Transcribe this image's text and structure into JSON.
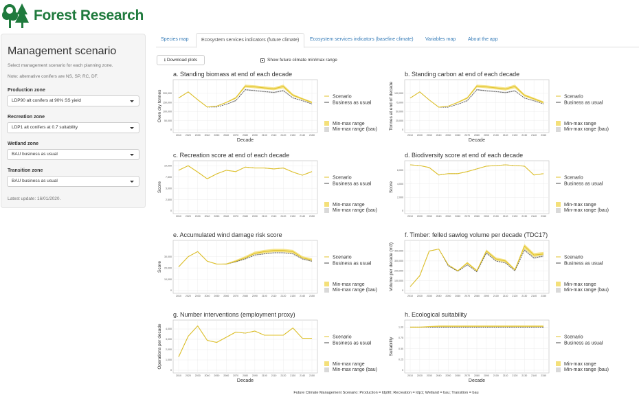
{
  "app": {
    "logo_text": "Forest Research",
    "logo_color": "#1f7a3d"
  },
  "sidebar": {
    "title": "Management scenario",
    "help": "Select management scenario for each planning zone.",
    "note": "Note: alternative conifers are NS, SP, RC, DF.",
    "zones": [
      {
        "label": "Production zone",
        "value": "LDP90 alt conifers at 90% SS yield"
      },
      {
        "label": "Recreation zone",
        "value": "LDP1 alt conifers at 0.7 suitability"
      },
      {
        "label": "Wetland zone",
        "value": "BAU business as usual"
      },
      {
        "label": "Transition zone",
        "value": "BAU business as usual"
      }
    ],
    "update": "Latest update: 16/01/2020."
  },
  "tabs": [
    {
      "label": "Species map",
      "active": false
    },
    {
      "label": "Ecosystem services indicators (future climate)",
      "active": true
    },
    {
      "label": "Ecosystem services indicators (baseline climate)",
      "active": false
    },
    {
      "label": "Variables map",
      "active": false
    },
    {
      "label": "About the app",
      "active": false
    }
  ],
  "toolbar": {
    "download_label": "Download plots",
    "checkbox_label": "Show future climate min/max range",
    "checkbox_checked": true
  },
  "caption": "Future Climate Management Scenario: Production = ldp90; Recreation = ldp1; Wetland = bau; Transition = bau",
  "colors": {
    "scenario": "#e0c22a",
    "bau": "#4a4a4a",
    "range_scenario": "#f4e07a",
    "range_bau": "#d9d9d9",
    "panel_border": "#bbbbbb",
    "grid": "#ececec"
  },
  "legend": {
    "scenario": "Scenario",
    "bau": "Business as usual",
    "range": "Min-max range",
    "range_bau": "Min-max range (bau)"
  },
  "chart_data": [
    {
      "type": "line",
      "title": "a. Standing biomass at end of each decade",
      "xlabel": "Decade",
      "ylabel": "Oven dry tonnes",
      "x": [
        2010,
        2020,
        2030,
        2040,
        2050,
        2060,
        2070,
        2080,
        2090,
        2100,
        2110,
        2120,
        2130,
        2140,
        2150
      ],
      "ylim": [
        0,
        260000
      ],
      "yticks": [
        "0",
        "50,000",
        "100,000",
        "150,000",
        "200,000"
      ],
      "yticks_values": [
        0,
        50000,
        100000,
        150000,
        200000
      ],
      "show_range_legend": true,
      "series": [
        {
          "name": "Scenario",
          "values": [
            175000,
            208000,
            165000,
            125000,
            130000,
            150000,
            175000,
            240000,
            236000,
            230000,
            225000,
            238000,
            190000,
            170000,
            150000
          ],
          "min": [
            175000,
            208000,
            165000,
            125000,
            130000,
            148000,
            170000,
            232000,
            228000,
            222000,
            217000,
            228000,
            183000,
            165000,
            145000
          ],
          "max": [
            175000,
            208000,
            165000,
            125000,
            130000,
            153000,
            180000,
            248000,
            244000,
            238000,
            233000,
            248000,
            197000,
            175000,
            155000
          ]
        },
        {
          "name": "Business as usual",
          "values": [
            175000,
            208000,
            165000,
            125000,
            125000,
            140000,
            160000,
            220000,
            215000,
            210000,
            205000,
            215000,
            175000,
            160000,
            142000
          ],
          "min": [
            175000,
            208000,
            165000,
            125000,
            125000,
            138000,
            156000,
            216000,
            211000,
            206000,
            201000,
            210000,
            172000,
            157000,
            139000
          ],
          "max": [
            175000,
            208000,
            165000,
            125000,
            125000,
            142000,
            164000,
            224000,
            219000,
            214000,
            209000,
            220000,
            178000,
            163000,
            145000
          ]
        }
      ]
    },
    {
      "type": "line",
      "title": "b. Standing carbon at end of each decade",
      "xlabel": "Decade",
      "ylabel": "Tonnes at end of decade",
      "x": [
        2010,
        2020,
        2030,
        2040,
        2050,
        2060,
        2070,
        2080,
        2090,
        2100,
        2110,
        2120,
        2130,
        2140,
        2150
      ],
      "ylim": [
        0,
        130000
      ],
      "yticks": [
        "0",
        "25,000",
        "50,000",
        "75,000",
        "100,000"
      ],
      "yticks_values": [
        0,
        25000,
        50000,
        75000,
        100000
      ],
      "show_range_legend": true,
      "series": [
        {
          "name": "Scenario",
          "values": [
            87000,
            104000,
            82000,
            62000,
            65000,
            75000,
            87000,
            120000,
            118000,
            115000,
            112000,
            119000,
            95000,
            85000,
            75000
          ],
          "min": [
            87000,
            104000,
            82000,
            62000,
            65000,
            74000,
            85000,
            116000,
            114000,
            111000,
            108000,
            114000,
            91000,
            82000,
            72000
          ],
          "max": [
            87000,
            104000,
            82000,
            62000,
            65000,
            77000,
            90000,
            124000,
            122000,
            119000,
            116000,
            124000,
            98000,
            88000,
            78000
          ]
        },
        {
          "name": "Business as usual",
          "values": [
            87000,
            104000,
            82000,
            62000,
            62000,
            70000,
            80000,
            110000,
            107000,
            105000,
            102000,
            107000,
            87000,
            80000,
            71000
          ],
          "min": [
            87000,
            104000,
            82000,
            62000,
            62000,
            69000,
            78000,
            108000,
            105000,
            103000,
            100000,
            105000,
            86000,
            78000,
            70000
          ],
          "max": [
            87000,
            104000,
            82000,
            62000,
            62000,
            71000,
            82000,
            112000,
            109000,
            107000,
            104000,
            109000,
            88000,
            81000,
            72000
          ]
        }
      ]
    },
    {
      "type": "line",
      "title": "c. Recreation score at end of each decade",
      "xlabel": "",
      "ylabel": "Score",
      "x": [
        2010,
        2020,
        2030,
        2040,
        2050,
        2060,
        2070,
        2080,
        2090,
        2100,
        2110,
        2120,
        2130,
        2140,
        2150
      ],
      "ylim": [
        0,
        10500
      ],
      "yticks": [
        "0",
        "2,500",
        "5,000",
        "7,500",
        "10,000"
      ],
      "yticks_values": [
        0,
        2500,
        5000,
        7500,
        10000
      ],
      "show_range_legend": true,
      "series": [
        {
          "name": "Scenario",
          "values": [
            9000,
            10000,
            8600,
            7100,
            8200,
            9000,
            8700,
            9700,
            9500,
            9500,
            9300,
            9500,
            8600,
            7900,
            8700
          ]
        },
        {
          "name": "Business as usual",
          "values": [
            9000,
            10000,
            8600,
            7100,
            8200,
            9000,
            8700,
            9700,
            9500,
            9500,
            9300,
            9500,
            8600,
            7900,
            8700
          ]
        }
      ]
    },
    {
      "type": "line",
      "title": "d. Biodiversity score at end of each decade",
      "xlabel": "",
      "ylabel": "Score",
      "x": [
        2010,
        2020,
        2030,
        2040,
        2050,
        2060,
        2070,
        2080,
        2090,
        2100,
        2110,
        2120,
        2130,
        2140,
        2150
      ],
      "ylim": [
        0,
        7000
      ],
      "yticks": [
        "0",
        "2,000",
        "4,000",
        "6,000"
      ],
      "yticks_values": [
        0,
        2000,
        4000,
        6000
      ],
      "show_range_legend": true,
      "series": [
        {
          "name": "Scenario",
          "values": [
            6800,
            6700,
            6400,
            5300,
            5500,
            5500,
            5800,
            6200,
            6600,
            6700,
            6800,
            6700,
            6600,
            5300,
            5500
          ]
        },
        {
          "name": "Business as usual",
          "values": [
            6800,
            6700,
            6400,
            5300,
            5500,
            5500,
            5800,
            6200,
            6600,
            6700,
            6800,
            6700,
            6600,
            5300,
            5500
          ]
        }
      ]
    },
    {
      "type": "line",
      "title": "e. Accumulated wind damage risk score",
      "xlabel": "",
      "ylabel": "Score",
      "x": [
        2010,
        2020,
        2030,
        2040,
        2050,
        2060,
        2070,
        2080,
        2090,
        2100,
        2110,
        2120,
        2130,
        2140,
        2150
      ],
      "ylim": [
        0,
        42000
      ],
      "yticks": [
        "0",
        "10,000",
        "20,000",
        "30,000"
      ],
      "yticks_values": [
        0,
        10000,
        20000,
        30000
      ],
      "show_range_legend": true,
      "series": [
        {
          "name": "Scenario",
          "values": [
            21000,
            30000,
            34500,
            26000,
            23500,
            23500,
            26000,
            29000,
            33000,
            34500,
            35500,
            35500,
            34500,
            29000,
            27000
          ],
          "min": [
            21000,
            30000,
            34500,
            26000,
            23500,
            23000,
            25000,
            27500,
            31500,
            33000,
            34000,
            34000,
            33000,
            27500,
            25500
          ],
          "max": [
            21000,
            30000,
            34500,
            26000,
            23500,
            24000,
            27000,
            30500,
            34500,
            36000,
            37000,
            37000,
            36000,
            30500,
            28500
          ]
        },
        {
          "name": "Business as usual",
          "values": [
            21000,
            30000,
            34500,
            26000,
            23500,
            23500,
            25500,
            28000,
            31500,
            32500,
            33500,
            33500,
            32500,
            28000,
            26000
          ],
          "min": [
            21000,
            30000,
            34500,
            26000,
            23500,
            23000,
            25000,
            27500,
            31000,
            32000,
            33000,
            33000,
            32000,
            27500,
            25500
          ],
          "max": [
            21000,
            30000,
            34500,
            26000,
            23500,
            24000,
            26000,
            28500,
            32000,
            33000,
            34000,
            34000,
            33000,
            28500,
            26500
          ]
        }
      ]
    },
    {
      "type": "line",
      "title": "f. Timber: felled sawlog volume per decade (TDC17)",
      "xlabel": "",
      "ylabel": "Volume per decade (m3)",
      "x": [
        2010,
        2020,
        2030,
        2040,
        2050,
        2060,
        2070,
        2080,
        2090,
        2100,
        2110,
        2120,
        2130,
        2140,
        2150
      ],
      "ylim": [
        0,
        480000
      ],
      "yticks": [
        "0",
        "100,000",
        "200,000",
        "300,000",
        "400,000"
      ],
      "yticks_values": [
        0,
        100000,
        200000,
        300000,
        400000
      ],
      "show_range_legend": true,
      "series": [
        {
          "name": "Scenario",
          "values": [
            40000,
            150000,
            400000,
            420000,
            260000,
            200000,
            280000,
            200000,
            400000,
            320000,
            300000,
            210000,
            450000,
            360000,
            370000
          ],
          "min": [
            40000,
            150000,
            400000,
            420000,
            260000,
            195000,
            270000,
            190000,
            380000,
            305000,
            285000,
            200000,
            420000,
            340000,
            350000
          ],
          "max": [
            40000,
            150000,
            400000,
            420000,
            260000,
            205000,
            290000,
            210000,
            415000,
            335000,
            315000,
            220000,
            470000,
            380000,
            390000
          ]
        },
        {
          "name": "Business as usual",
          "values": [
            40000,
            150000,
            400000,
            420000,
            250000,
            195000,
            260000,
            190000,
            380000,
            300000,
            280000,
            200000,
            410000,
            330000,
            350000
          ],
          "min": [
            40000,
            150000,
            400000,
            420000,
            245000,
            190000,
            255000,
            185000,
            370000,
            295000,
            275000,
            195000,
            400000,
            320000,
            340000
          ],
          "max": [
            40000,
            150000,
            400000,
            420000,
            255000,
            200000,
            265000,
            195000,
            390000,
            305000,
            285000,
            205000,
            420000,
            340000,
            360000
          ]
        }
      ]
    },
    {
      "type": "line",
      "title": "g. Number interventions (employment proxy)",
      "xlabel": "Decade",
      "ylabel": "Operations per decade",
      "x": [
        2010,
        2020,
        2030,
        2040,
        2050,
        2060,
        2070,
        2080,
        2090,
        2100,
        2110,
        2120,
        2130,
        2140,
        2150
      ],
      "ylim": [
        0,
        4600
      ],
      "yticks": [
        "0",
        "1,000",
        "2,000",
        "3,000",
        "4,000"
      ],
      "yticks_values": [
        0,
        1000,
        2000,
        3000,
        4000
      ],
      "show_range_legend": true,
      "series": [
        {
          "name": "Scenario",
          "values": [
            1300,
            3300,
            4300,
            2900,
            2700,
            3200,
            3700,
            3600,
            3800,
            3400,
            3400,
            3400,
            4100,
            3100,
            3100
          ]
        },
        {
          "name": "Business as usual",
          "values": [
            1300,
            3300,
            4300,
            2900,
            2700,
            3200,
            3700,
            3600,
            3800,
            3400,
            3400,
            3400,
            4100,
            3100,
            3100
          ]
        }
      ]
    },
    {
      "type": "line",
      "title": "h. Ecological suitability",
      "xlabel": "Decade",
      "ylabel": "Suitability",
      "x": [
        2010,
        2020,
        2030,
        2040,
        2050,
        2060,
        2070,
        2080,
        2090,
        2100,
        2110,
        2120,
        2130,
        2140,
        2150
      ],
      "ylim": [
        0,
        1.1
      ],
      "yticks": [
        "0",
        "0.25",
        "0.50",
        "0.75",
        "1.00"
      ],
      "yticks_values": [
        0,
        0.25,
        0.5,
        0.75,
        1.0
      ],
      "show_range_legend": true,
      "series": [
        {
          "name": "Scenario",
          "values": [
            1.0,
            1.0,
            1.01,
            1.02,
            1.02,
            1.02,
            1.02,
            1.02,
            1.02,
            1.02,
            1.02,
            1.02,
            1.02,
            1.02,
            1.02
          ],
          "min": [
            1.0,
            1.0,
            1.0,
            1.0,
            1.0,
            1.0,
            1.0,
            1.0,
            1.0,
            1.0,
            1.0,
            1.0,
            1.0,
            1.0,
            1.0
          ],
          "max": [
            1.0,
            1.0,
            1.02,
            1.04,
            1.04,
            1.04,
            1.04,
            1.04,
            1.04,
            1.04,
            1.04,
            1.04,
            1.04,
            1.04,
            1.04
          ]
        },
        {
          "name": "Business as usual",
          "values": [
            1.0,
            1.0,
            1.0,
            1.0,
            1.0,
            1.0,
            1.0,
            1.0,
            1.0,
            1.0,
            1.0,
            1.0,
            1.0,
            1.0,
            1.0
          ]
        }
      ]
    }
  ]
}
